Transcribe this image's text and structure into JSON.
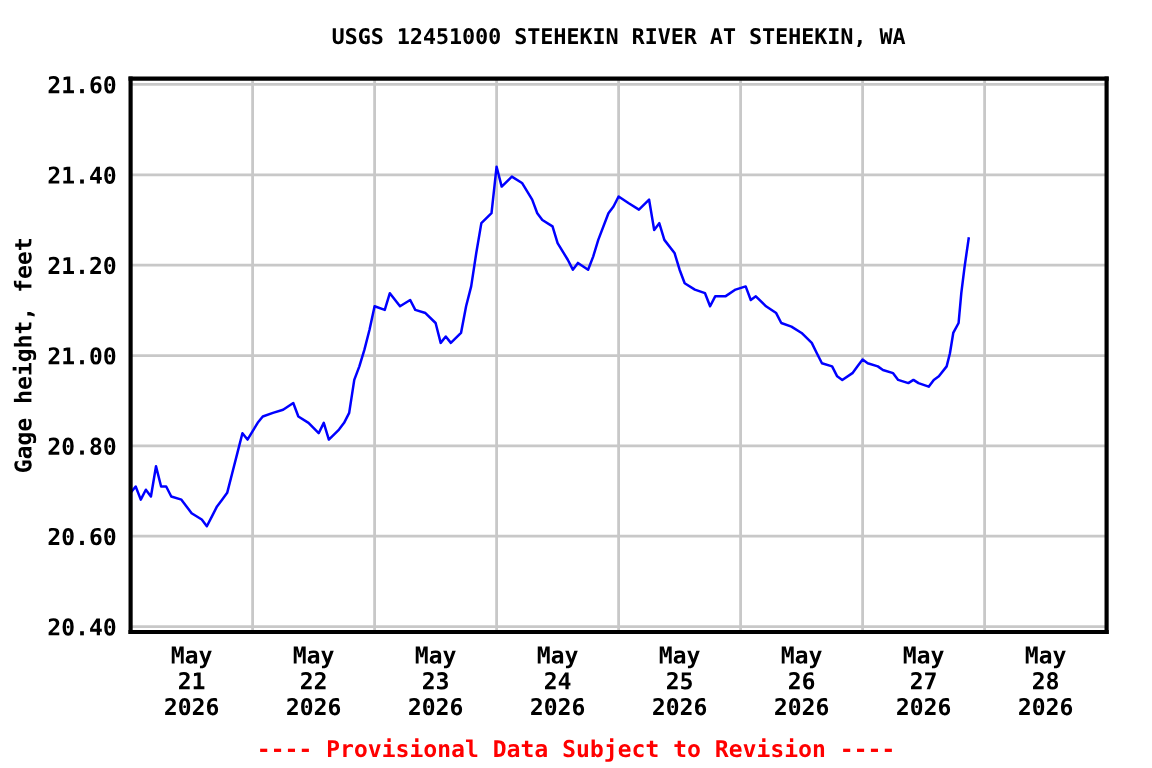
{
  "chart_data": {
    "type": "line",
    "title": "USGS 12451000 STEHEKIN RIVER AT STEHEKIN, WA",
    "ylabel": "Gage height, feet",
    "annotations": [
      "---- Provisional Data Subject to Revision ----"
    ],
    "xlim": [
      "2026-05-21T00:00",
      "2026-05-29T00:00"
    ],
    "xticks": [
      {
        "value": "2026-05-22T00:00",
        "label": null
      },
      {
        "value": "2026-05-23T00:00",
        "label": null
      },
      {
        "value": "2026-05-24T00:00",
        "label": null
      },
      {
        "value": "2026-05-25T00:00",
        "label": null
      },
      {
        "value": "2026-05-26T00:00",
        "label": null
      },
      {
        "value": "2026-05-27T00:00",
        "label": null
      },
      {
        "value": "2026-05-28T00:00",
        "label": null
      },
      {
        "value": "2026-05-21T12:00",
        "label": "May\n21\n2026"
      },
      {
        "value": "2026-05-22T12:00",
        "label": "May\n22\n2026"
      },
      {
        "value": "2026-05-23T12:00",
        "label": "May\n23\n2026"
      },
      {
        "value": "2026-05-24T12:00",
        "label": "May\n24\n2026"
      },
      {
        "value": "2026-05-25T12:00",
        "label": "May\n25\n2026"
      },
      {
        "value": "2026-05-26T12:00",
        "label": "May\n26\n2026"
      },
      {
        "value": "2026-05-27T12:00",
        "label": "May\n27\n2026"
      },
      {
        "value": "2026-05-28T12:00",
        "label": "May\n28\n2026"
      }
    ],
    "ylim": [
      20.388,
      21.613
    ],
    "yticks": [
      {
        "value": 20.4,
        "label": "20.40"
      },
      {
        "value": 20.6,
        "label": "20.60"
      },
      {
        "value": 20.8,
        "label": "20.80"
      },
      {
        "value": 21.0,
        "label": "21.00"
      },
      {
        "value": 21.2,
        "label": "21.20"
      },
      {
        "value": 21.4,
        "label": "21.40"
      },
      {
        "value": 21.6,
        "label": "21.60"
      }
    ],
    "grid": true,
    "marker": "none",
    "line_style": "solid",
    "series": [
      {
        "color": "#0000ff",
        "x": [
          "2026-05-21T00:00",
          "2026-05-21T01:00",
          "2026-05-21T02:00",
          "2026-05-21T03:00",
          "2026-05-21T04:00",
          "2026-05-21T05:00",
          "2026-05-21T06:00",
          "2026-05-21T07:00",
          "2026-05-21T08:00",
          "2026-05-21T10:00",
          "2026-05-21T11:00",
          "2026-05-21T12:00",
          "2026-05-21T14:00",
          "2026-05-21T15:00",
          "2026-05-21T16:00",
          "2026-05-21T17:00",
          "2026-05-21T18:00",
          "2026-05-21T19:00",
          "2026-05-21T20:00",
          "2026-05-21T21:00",
          "2026-05-21T22:00",
          "2026-05-21T23:00",
          "2026-05-22T01:00",
          "2026-05-22T02:00",
          "2026-05-22T04:00",
          "2026-05-22T06:00",
          "2026-05-22T08:00",
          "2026-05-22T09:00",
          "2026-05-22T11:00",
          "2026-05-22T13:00",
          "2026-05-22T14:00",
          "2026-05-22T15:00",
          "2026-05-22T17:00",
          "2026-05-22T18:00",
          "2026-05-22T19:00",
          "2026-05-22T20:00",
          "2026-05-22T21:00",
          "2026-05-22T22:00",
          "2026-05-22T23:00",
          "2026-05-23T00:00",
          "2026-05-23T02:00",
          "2026-05-23T03:00",
          "2026-05-23T05:00",
          "2026-05-23T07:00",
          "2026-05-23T08:00",
          "2026-05-23T10:00",
          "2026-05-23T12:00",
          "2026-05-23T13:00",
          "2026-05-23T14:00",
          "2026-05-23T15:00",
          "2026-05-23T17:00",
          "2026-05-23T18:00",
          "2026-05-23T19:00",
          "2026-05-23T20:00",
          "2026-05-23T21:00",
          "2026-05-23T23:00",
          "2026-05-24T00:00",
          "2026-05-24T01:00",
          "2026-05-24T03:00",
          "2026-05-24T05:00",
          "2026-05-24T07:00",
          "2026-05-24T08:00",
          "2026-05-24T09:00",
          "2026-05-24T11:00",
          "2026-05-24T12:00",
          "2026-05-24T14:00",
          "2026-05-24T15:00",
          "2026-05-24T16:00",
          "2026-05-24T18:00",
          "2026-05-24T19:00",
          "2026-05-24T20:00",
          "2026-05-24T22:00",
          "2026-05-24T23:00",
          "2026-05-25T00:00",
          "2026-05-25T02:00",
          "2026-05-25T04:00",
          "2026-05-25T06:00",
          "2026-05-25T07:00",
          "2026-05-25T08:00",
          "2026-05-25T09:00",
          "2026-05-25T11:00",
          "2026-05-25T12:00",
          "2026-05-25T13:00",
          "2026-05-25T15:00",
          "2026-05-25T17:00",
          "2026-05-25T18:00",
          "2026-05-25T19:00",
          "2026-05-25T21:00",
          "2026-05-25T23:00",
          "2026-05-26T01:00",
          "2026-05-26T02:00",
          "2026-05-26T03:00",
          "2026-05-26T05:00",
          "2026-05-26T07:00",
          "2026-05-26T08:00",
          "2026-05-26T10:00",
          "2026-05-26T12:00",
          "2026-05-26T14:00",
          "2026-05-26T15:00",
          "2026-05-26T16:00",
          "2026-05-26T18:00",
          "2026-05-26T19:00",
          "2026-05-26T20:00",
          "2026-05-26T22:00",
          "2026-05-26T23:00",
          "2026-05-27T00:00",
          "2026-05-27T01:00",
          "2026-05-27T03:00",
          "2026-05-27T04:00",
          "2026-05-27T06:00",
          "2026-05-27T07:00",
          "2026-05-27T09:00",
          "2026-05-27T10:00",
          "2026-05-27T11:00",
          "2026-05-27T13:00",
          "2026-05-27T14:00",
          "2026-05-27T15:00",
          "2026-05-27T16:32",
          "2026-05-27T17:11",
          "2026-05-27T17:50",
          "2026-05-27T18:53",
          "2026-05-27T19:25",
          "2026-05-27T20:04",
          "2026-05-27T20:52"
        ],
        "values": [
          20.696,
          20.71,
          20.681,
          20.703,
          20.688,
          20.755,
          20.71,
          20.71,
          20.688,
          20.681,
          20.666,
          20.651,
          20.637,
          20.622,
          20.644,
          20.666,
          20.681,
          20.696,
          20.74,
          20.784,
          20.828,
          20.814,
          20.851,
          20.865,
          20.873,
          20.88,
          20.895,
          20.865,
          20.851,
          20.828,
          20.851,
          20.814,
          20.836,
          20.851,
          20.873,
          20.946,
          20.976,
          21.013,
          21.057,
          21.109,
          21.101,
          21.138,
          21.109,
          21.123,
          21.101,
          21.094,
          21.072,
          21.028,
          21.042,
          21.028,
          21.05,
          21.109,
          21.153,
          21.227,
          21.293,
          21.315,
          21.418,
          21.374,
          21.396,
          21.382,
          21.345,
          21.315,
          21.3,
          21.286,
          21.249,
          21.212,
          21.19,
          21.205,
          21.19,
          21.219,
          21.256,
          21.315,
          21.33,
          21.352,
          21.337,
          21.323,
          21.345,
          21.278,
          21.293,
          21.256,
          21.227,
          21.19,
          21.16,
          21.146,
          21.138,
          21.109,
          21.131,
          21.131,
          21.146,
          21.153,
          21.123,
          21.131,
          21.109,
          21.094,
          21.072,
          21.064,
          21.05,
          21.028,
          21.005,
          20.983,
          20.976,
          20.954,
          20.946,
          20.961,
          20.976,
          20.991,
          20.983,
          20.976,
          20.968,
          20.961,
          20.946,
          20.939,
          20.946,
          20.939,
          20.931,
          20.946,
          20.954,
          20.976,
          21.005,
          21.05,
          21.072,
          21.138,
          21.197,
          21.259
        ]
      }
    ]
  }
}
